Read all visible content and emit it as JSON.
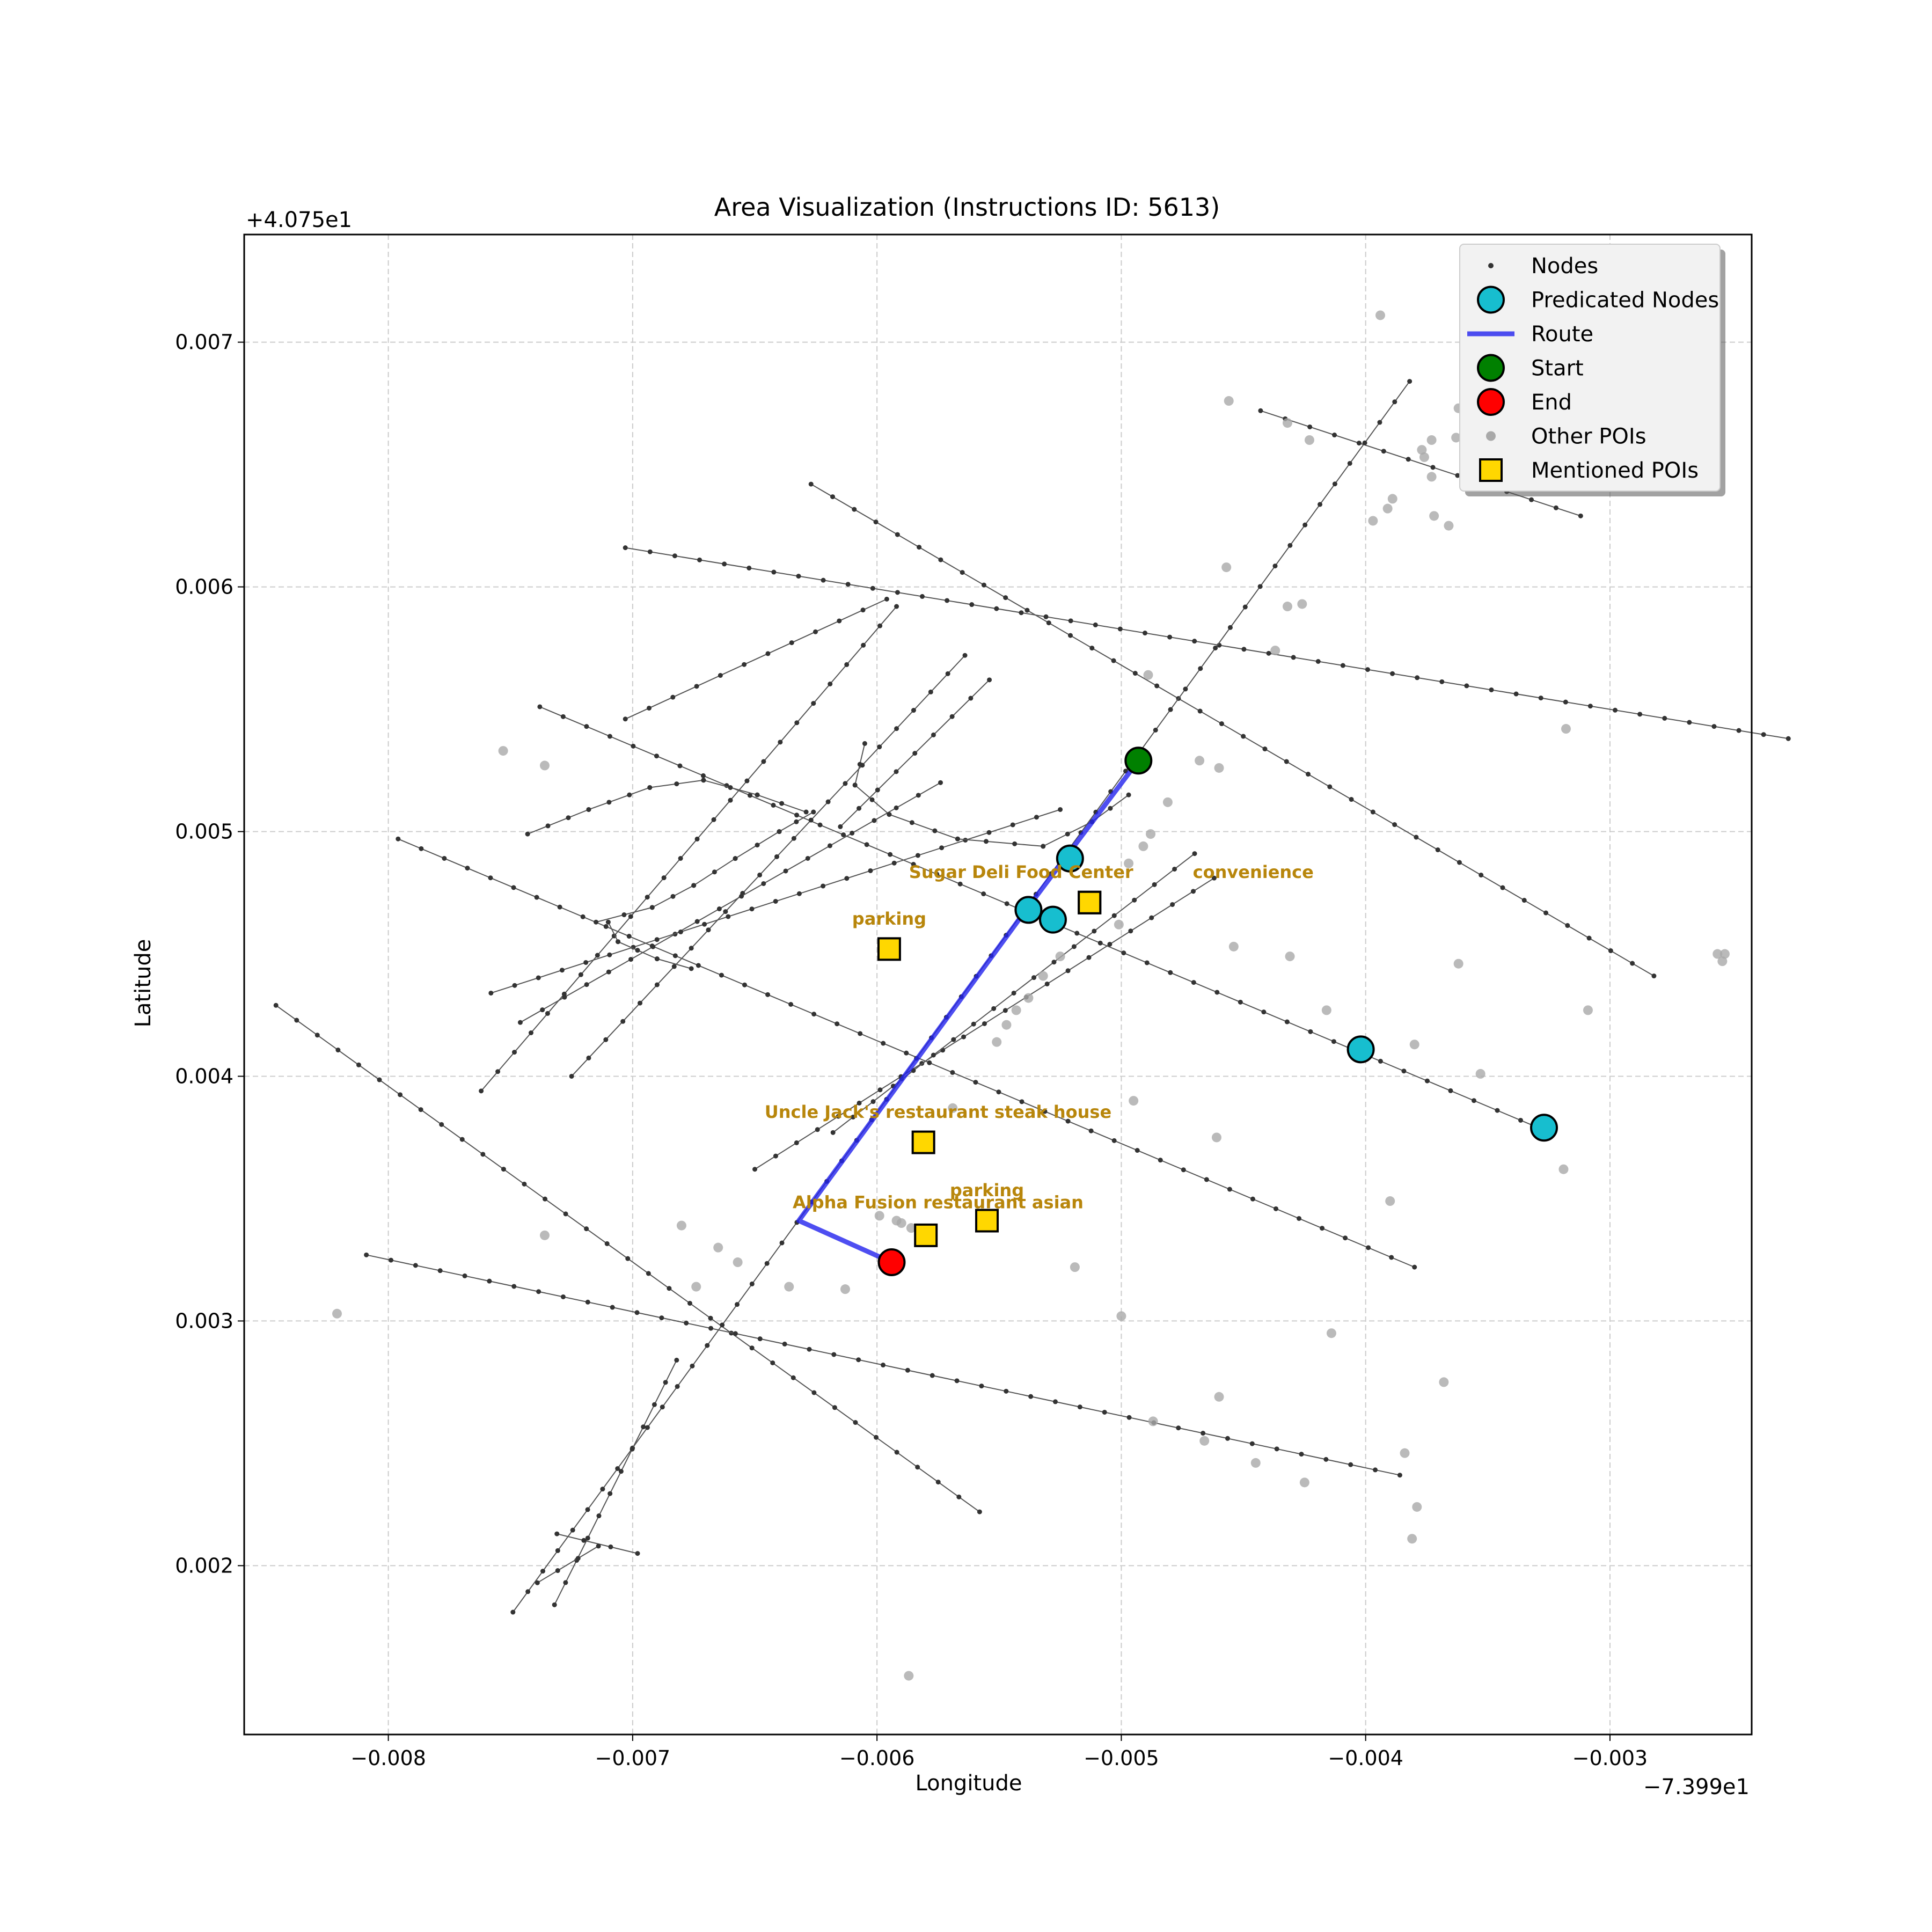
{
  "figure": {
    "title": "Area Visualization (Instructions ID: 5613)",
    "xlabel": "Longitude",
    "ylabel": "Latitude",
    "x_offset_label": "−7.399e1",
    "y_offset_label": "+4.075e1"
  },
  "chart_data": {
    "type": "scatter",
    "x_offset": -73.99,
    "y_offset": 40.75,
    "xlim": [
      -0.00859,
      -0.00242
    ],
    "ylim": [
      0.00131,
      0.00744
    ],
    "xticks": [
      -0.008,
      -0.007,
      -0.006,
      -0.005,
      -0.004,
      -0.003
    ],
    "yticks": [
      0.002,
      0.003,
      0.004,
      0.005,
      0.006,
      0.007
    ],
    "xtick_labels": [
      "−0.008",
      "−0.007",
      "−0.006",
      "−0.005",
      "−0.004",
      "−0.003"
    ],
    "ytick_labels": [
      "0.002",
      "0.003",
      "0.004",
      "0.005",
      "0.006",
      "0.007"
    ],
    "grid": true,
    "legend_position": "top-right",
    "legend": [
      {
        "key": "nodes",
        "label": "Nodes"
      },
      {
        "key": "predicted",
        "label": "Predicated Nodes"
      },
      {
        "key": "route",
        "label": "Route"
      },
      {
        "key": "start",
        "label": "Start"
      },
      {
        "key": "end",
        "label": "End"
      },
      {
        "key": "other_pois",
        "label": "Other POIs"
      },
      {
        "key": "mentioned_pois",
        "label": "Mentioned POIs"
      }
    ],
    "colors": {
      "nodes": "#333333",
      "edges": "#555555",
      "predicted": "#17becf",
      "route": "#2222ee",
      "start": "#008000",
      "end": "#ff0000",
      "other_pois": "#a9a9a9",
      "mentioned_pois": "#ffd700",
      "poi_label": "#b8860b"
    },
    "streets": [
      [
        [
          -0.00703,
          0.00616
        ],
        [
          -0.00227,
          0.00538
        ]
      ],
      [
        [
          -0.00627,
          0.00642
        ],
        [
          -0.00282,
          0.00441
        ]
      ],
      [
        [
          -0.00738,
          0.00551
        ],
        [
          -0.00327,
          0.00378
        ]
      ],
      [
        [
          -0.00796,
          0.00497
        ],
        [
          -0.0038,
          0.00322
        ]
      ],
      [
        [
          -0.00846,
          0.00429
        ],
        [
          -0.00558,
          0.00222
        ]
      ],
      [
        [
          -0.00809,
          0.00327
        ],
        [
          -0.00386,
          0.00237
        ]
      ],
      [
        [
          -0.00443,
          0.00672
        ],
        [
          -0.00312,
          0.00629
        ]
      ],
      [
        [
          -0.00749,
          0.00181
        ],
        [
          -0.00382,
          0.00684
        ]
      ],
      [
        [
          -0.00732,
          0.00184
        ],
        [
          -0.00682,
          0.00284
        ]
      ],
      [
        [
          -0.00762,
          0.00394
        ],
        [
          -0.00592,
          0.00592
        ]
      ],
      [
        [
          -0.00725,
          0.004
        ],
        [
          -0.00564,
          0.00572
        ]
      ],
      [
        [
          -0.00703,
          0.00546
        ],
        [
          -0.00596,
          0.00595
        ]
      ],
      [
        [
          -0.00615,
          0.00502
        ],
        [
          -0.00554,
          0.00562
        ]
      ],
      [
        [
          -0.00746,
          0.00422
        ],
        [
          -0.00574,
          0.0052
        ]
      ],
      [
        [
          -0.00758,
          0.00434
        ],
        [
          -0.00525,
          0.00509
        ]
      ],
      [
        [
          -0.0065,
          0.00362
        ],
        [
          -0.00462,
          0.00481
        ]
      ],
      [
        [
          -0.00618,
          0.00377
        ],
        [
          -0.0047,
          0.00491
        ]
      ],
      [
        [
          -0.00731,
          0.00213
        ],
        [
          -0.00698,
          0.00205
        ]
      ],
      [
        [
          -0.00739,
          0.00193
        ],
        [
          -0.00714,
          0.00208
        ]
      ]
    ],
    "curves": [
      {
        "points": [
          [
            -0.00743,
            0.00499
          ],
          [
            -0.00718,
            0.00509
          ],
          [
            -0.00693,
            0.00518
          ],
          [
            -0.00671,
            0.00521
          ],
          [
            -0.00649,
            0.00515
          ],
          [
            -0.00629,
            0.00508
          ]
        ]
      },
      {
        "points": [
          [
            -0.00715,
            0.00463
          ],
          [
            -0.00692,
            0.00469
          ],
          [
            -0.00675,
            0.00478
          ],
          [
            -0.00658,
            0.00489
          ],
          [
            -0.0064,
            0.005
          ],
          [
            -0.00626,
            0.00508
          ]
        ]
      },
      {
        "points": [
          [
            -0.00605,
            0.00536
          ],
          [
            -0.00609,
            0.00519
          ],
          [
            -0.00595,
            0.00507
          ],
          [
            -0.00567,
            0.00497
          ],
          [
            -0.00532,
            0.00494
          ],
          [
            -0.00512,
            0.00504
          ],
          [
            -0.00497,
            0.00515
          ]
        ]
      },
      {
        "points": [
          [
            -0.0071,
            0.00463
          ],
          [
            -0.00706,
            0.00455
          ],
          [
            -0.0069,
            0.00448
          ],
          [
            -0.00676,
            0.00444
          ]
        ]
      }
    ],
    "predicted_nodes": [
      [
        -0.00521,
        0.00489
      ],
      [
        -0.00538,
        0.00468
      ],
      [
        -0.00528,
        0.00464
      ],
      [
        -0.00402,
        0.00411
      ],
      [
        -0.00327,
        0.00379
      ]
    ],
    "route": [
      [
        -0.00493,
        0.00529
      ],
      [
        -0.00539,
        0.00468
      ],
      [
        -0.00632,
        0.00341
      ],
      [
        -0.00594,
        0.00324
      ]
    ],
    "start": [
      -0.00493,
      0.00529
    ],
    "end": [
      -0.00594,
      0.00324
    ],
    "other_pois": [
      [
        -0.00394,
        0.00711
      ],
      [
        -0.00456,
        0.00676
      ],
      [
        -0.00362,
        0.00673
      ],
      [
        -0.00363,
        0.00661
      ],
      [
        -0.00432,
        0.00667
      ],
      [
        -0.00423,
        0.0066
      ],
      [
        -0.00377,
        0.00656
      ],
      [
        -0.00373,
        0.0066
      ],
      [
        -0.00376,
        0.00653
      ],
      [
        -0.00389,
        0.00636
      ],
      [
        -0.00391,
        0.00632
      ],
      [
        -0.00373,
        0.00645
      ],
      [
        -0.00372,
        0.00629
      ],
      [
        -0.00397,
        0.00627
      ],
      [
        -0.00366,
        0.00625
      ],
      [
        -0.00457,
        0.00608
      ],
      [
        -0.00432,
        0.00592
      ],
      [
        -0.00426,
        0.00593
      ],
      [
        -0.00437,
        0.00574
      ],
      [
        -0.00489,
        0.00564
      ],
      [
        -0.00318,
        0.00542
      ],
      [
        -0.00753,
        0.00533
      ],
      [
        -0.00736,
        0.00527
      ],
      [
        -0.00468,
        0.00529
      ],
      [
        -0.0046,
        0.00526
      ],
      [
        -0.00481,
        0.00512
      ],
      [
        -0.00488,
        0.00499
      ],
      [
        -0.00491,
        0.00494
      ],
      [
        -0.00497,
        0.00487
      ],
      [
        -0.00501,
        0.00462
      ],
      [
        -0.00525,
        0.00449
      ],
      [
        -0.00532,
        0.00441
      ],
      [
        -0.00538,
        0.00432
      ],
      [
        -0.00543,
        0.00427
      ],
      [
        -0.00547,
        0.00421
      ],
      [
        -0.00551,
        0.00414
      ],
      [
        -0.00454,
        0.00453
      ],
      [
        -0.00431,
        0.00449
      ],
      [
        -0.00362,
        0.00446
      ],
      [
        -0.00256,
        0.0045
      ],
      [
        -0.00253,
        0.0045
      ],
      [
        -0.00254,
        0.00447
      ],
      [
        -0.00309,
        0.00427
      ],
      [
        -0.00416,
        0.00427
      ],
      [
        -0.0038,
        0.00413
      ],
      [
        -0.00353,
        0.00401
      ],
      [
        -0.00495,
        0.0039
      ],
      [
        -0.00461,
        0.00375
      ],
      [
        -0.00319,
        0.00362
      ],
      [
        -0.0039,
        0.00349
      ],
      [
        -0.00569,
        0.00387
      ],
      [
        -0.00599,
        0.00343
      ],
      [
        -0.00592,
        0.00341
      ],
      [
        -0.0059,
        0.0034
      ],
      [
        -0.00586,
        0.00338
      ],
      [
        -0.0068,
        0.00339
      ],
      [
        -0.00736,
        0.00335
      ],
      [
        -0.00665,
        0.0033
      ],
      [
        -0.00657,
        0.00324
      ],
      [
        -0.00519,
        0.00322
      ],
      [
        -0.00674,
        0.00314
      ],
      [
        -0.00636,
        0.00314
      ],
      [
        -0.00613,
        0.00313
      ],
      [
        -0.005,
        0.00302
      ],
      [
        -0.00821,
        0.00303
      ],
      [
        -0.00414,
        0.00295
      ],
      [
        -0.00368,
        0.00275
      ],
      [
        -0.0046,
        0.00269
      ],
      [
        -0.00487,
        0.00259
      ],
      [
        -0.00466,
        0.00251
      ],
      [
        -0.00445,
        0.00242
      ],
      [
        -0.00384,
        0.00246
      ],
      [
        -0.00425,
        0.00234
      ],
      [
        -0.00379,
        0.00224
      ],
      [
        -0.00381,
        0.00211
      ],
      [
        -0.00587,
        0.00155
      ]
    ],
    "mentioned_pois": [
      {
        "name": "Sugar Deli Food Center",
        "xy": [
          -0.00513,
          0.00471
        ],
        "label_xy": [
          -0.00541,
          0.00481
        ]
      },
      {
        "name": "convenience",
        "xy": [
          -0.00513,
          0.00471
        ],
        "label_xy": [
          -0.00446,
          0.00481
        ]
      },
      {
        "name": "parking",
        "xy": [
          -0.00595,
          0.00452
        ],
        "label_xy": [
          -0.00595,
          0.00462
        ]
      },
      {
        "name": "Uncle Jack's restaurant steak house",
        "xy": [
          -0.00581,
          0.00373
        ],
        "label_xy": [
          -0.00575,
          0.00383
        ]
      },
      {
        "name": "parking",
        "xy": [
          -0.00555,
          0.00341
        ],
        "label_xy": [
          -0.00555,
          0.00351
        ]
      },
      {
        "name": "Alpha Fusion restaurant asian",
        "xy": [
          -0.0058,
          0.00335
        ],
        "label_xy": [
          -0.00575,
          0.00346
        ]
      }
    ]
  }
}
